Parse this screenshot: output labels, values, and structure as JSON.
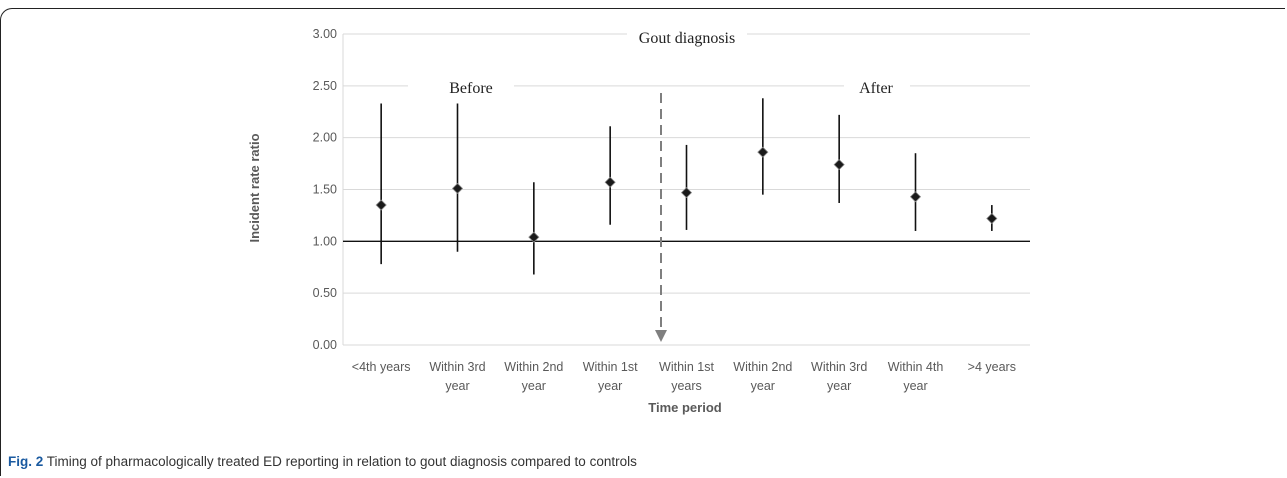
{
  "chart_data": {
    "type": "scatter",
    "xlabel": "Time period",
    "ylabel": "Incident rate ratio",
    "ylim": [
      0,
      3
    ],
    "yticks": [
      "0.00",
      "0.50",
      "1.00",
      "1.50",
      "2.00",
      "2.50",
      "3.00"
    ],
    "categories": [
      [
        "<4th years"
      ],
      [
        "Within 3rd",
        "year"
      ],
      [
        "Within 2nd",
        "year"
      ],
      [
        "Within 1st",
        "year"
      ],
      [
        "Within 1st",
        "years"
      ],
      [
        "Within 2nd",
        "year"
      ],
      [
        "Within 3rd",
        "year"
      ],
      [
        "Within 4th",
        "year"
      ],
      [
        ">4 years"
      ]
    ],
    "values": [
      1.35,
      1.51,
      1.04,
      1.57,
      1.47,
      1.86,
      1.74,
      1.43,
      1.22
    ],
    "lower": [
      0.78,
      0.9,
      0.68,
      1.16,
      1.11,
      1.45,
      1.37,
      1.1,
      1.1
    ],
    "upper": [
      2.33,
      2.33,
      1.57,
      2.11,
      1.93,
      2.38,
      2.22,
      1.85,
      1.35
    ],
    "reference_line": 1.0,
    "grid": true,
    "annotations": {
      "before": "Before",
      "gout_diagnosis": "Gout diagnosis",
      "after": "After"
    }
  },
  "caption": {
    "label": "Fig. 2",
    "text": "Timing of pharmacologically treated ED reporting in relation to gout diagnosis compared to controls"
  },
  "colors": {
    "grid": "#d9d9d9",
    "marker": "#1a1a1a",
    "arrow": "#7f7f7f"
  }
}
